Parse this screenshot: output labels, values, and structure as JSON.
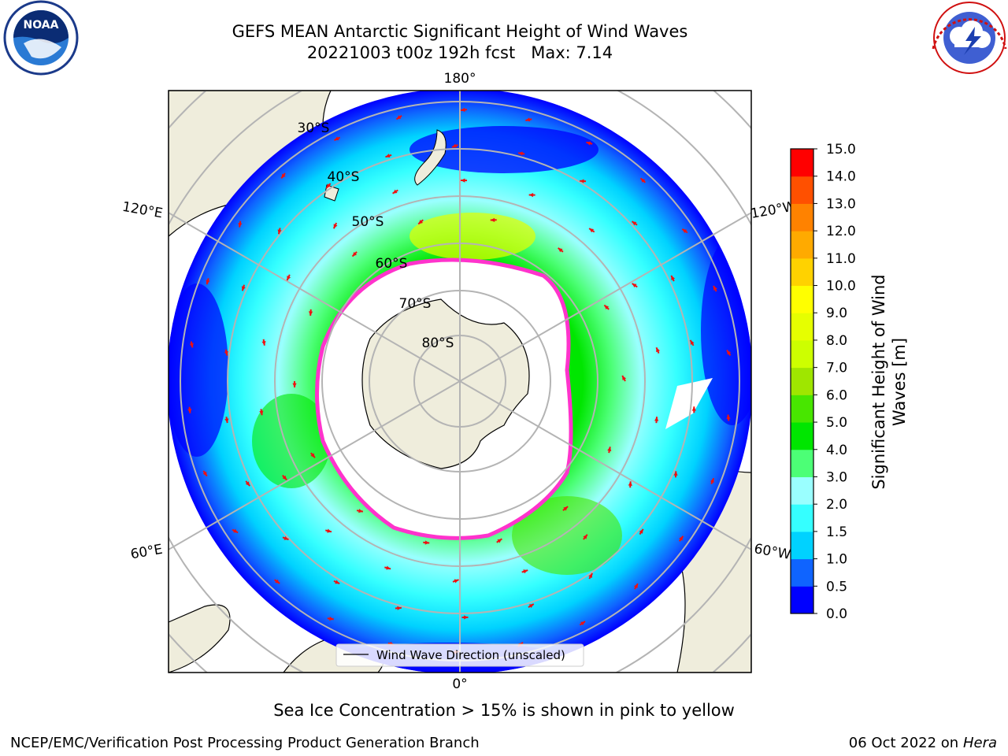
{
  "header": {
    "title_line1": "GEFS MEAN Antarctic Significant Height of Wind Waves",
    "title_line2": "20221003 t00z 192h fcst   Max: 7.14"
  },
  "logos": {
    "left": {
      "icon": "noaa-logo",
      "text": "NOAA",
      "ring_text": "NATIONAL OCEANIC AND ATMOSPHERIC ADMINISTRATION · U.S. DEPARTMENT OF COMMERCE"
    },
    "right": {
      "icon": "nws-logo",
      "ring_text": "NATIONAL WEATHER SERVICE"
    }
  },
  "map": {
    "projection": "south polar stereographic",
    "longitude_labels": [
      "180°",
      "120°E",
      "120°W",
      "60°E",
      "60°W",
      "0°"
    ],
    "latitude_labels": [
      "30°S",
      "40°S",
      "50°S",
      "60°S",
      "70°S",
      "80°S"
    ],
    "legend_label": "Wind Wave Direction (unscaled)",
    "colors": {
      "land": "#efeddc",
      "ice_region": "#ffffff",
      "sea_ice_edge": "#ff33cc",
      "arrow": "#ee1111",
      "grid": "#b4b4b4"
    }
  },
  "colorbar": {
    "title": "Significant Height of Wind Waves [m]",
    "ticks": [
      "0.0",
      "0.5",
      "1.0",
      "1.5",
      "2.0",
      "3.0",
      "4.0",
      "5.0",
      "6.0",
      "7.0",
      "8.0",
      "9.0",
      "10.0",
      "11.0",
      "12.0",
      "13.0",
      "14.0",
      "15.0"
    ],
    "colors": [
      "#0000ff",
      "#0f64ff",
      "#00d2ff",
      "#35ffff",
      "#9affff",
      "#4cff76",
      "#00e600",
      "#48e600",
      "#9fe600",
      "#cdff00",
      "#e6ff00",
      "#ffff00",
      "#ffd200",
      "#ffaa00",
      "#ff8200",
      "#ff5000",
      "#ff0000"
    ]
  },
  "caption": "Sea Ice Concentration > 15% is shown in pink to yellow",
  "footer": {
    "left": "NCEP/EMC/Verification Post Processing Product Generation Branch",
    "right_date": "06 Oct 2022 on ",
    "right_host": "Hera"
  }
}
